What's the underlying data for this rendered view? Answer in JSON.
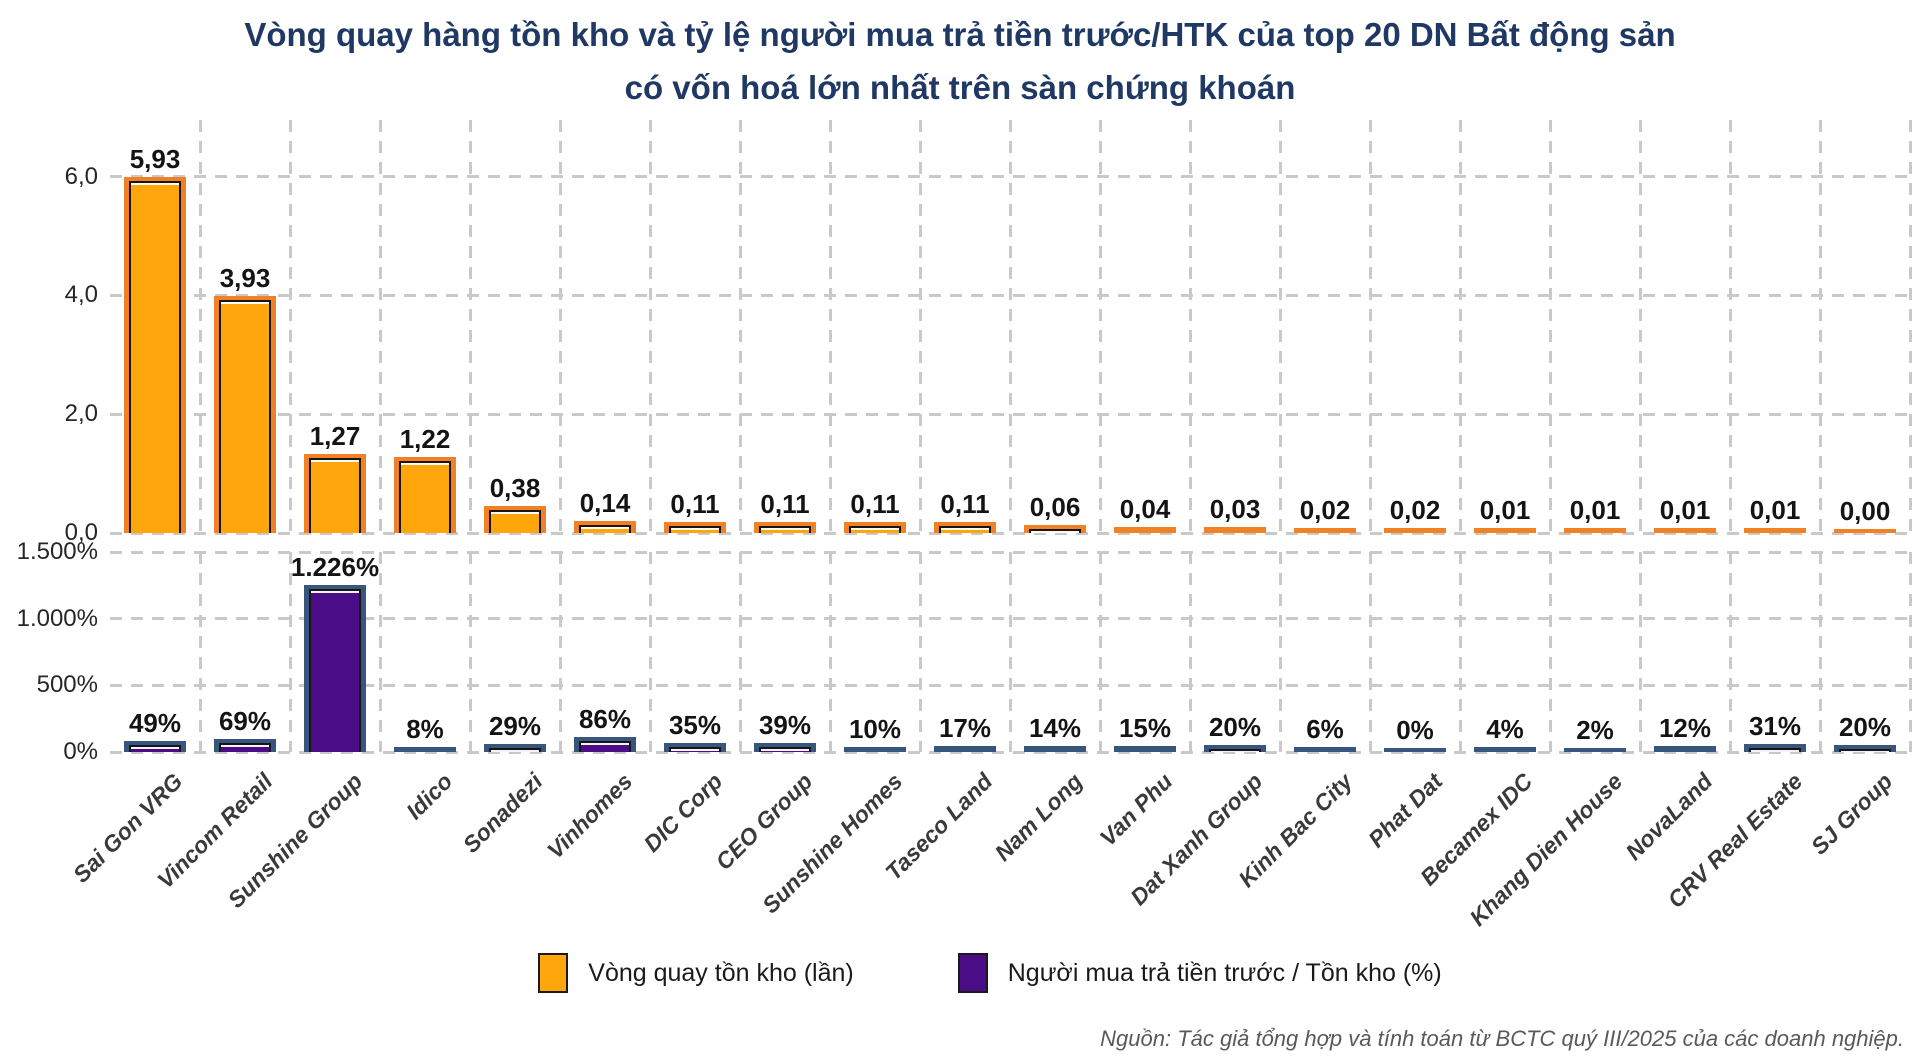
{
  "title": {
    "line1": "Vòng quay hàng tồn kho và tỷ lệ người mua trả tiền trước/HTK của top 20 DN Bất động sản",
    "line2": "có vốn hoá lớn nhất trên sàn chứng khoán"
  },
  "source_note": "Nguồn: Tác giả tổng hợp và tính toán từ BCTC quý III/2025 của các doanh nghiệp.",
  "colors": {
    "title_navy": "#1F3864",
    "orange_fill": "#FFA60D",
    "orange_frame": "#F08125",
    "purple_fill": "#4B0D87",
    "purple_frame": "#38557D",
    "gridline": "#C9C9C9"
  },
  "legend": [
    {
      "label": "Vòng quay tồn kho (lần)",
      "fill": "#FFA60D",
      "frame": "#1a1a1a"
    },
    {
      "label": "Người mua trả tiền trước / Tồn kho (%)",
      "fill": "#4B0D87",
      "frame": "#1a1a1a"
    }
  ],
  "chart_data": [
    {
      "type": "bar",
      "panel": "top",
      "series_name": "Vòng quay tồn kho (lần)",
      "categories": [
        "Sai Gon VRG",
        "Vincom Retail",
        "Sunshine Group",
        "Idico",
        "Sonadezi",
        "Vinhomes",
        "DIC Corp",
        "CEO Group",
        "Sunshine Homes",
        "Taseco Land",
        "Nam Long",
        "Van Phu",
        "Dat Xanh Group",
        "Kinh Bac City",
        "Phat Dat",
        "Becamex IDC",
        "Khang Dien House",
        "NovaLand",
        "CRV Real Estate",
        "SJ Group"
      ],
      "values": [
        5.93,
        3.93,
        1.27,
        1.22,
        0.38,
        0.14,
        0.11,
        0.11,
        0.11,
        0.11,
        0.06,
        0.04,
        0.03,
        0.02,
        0.02,
        0.01,
        0.01,
        0.01,
        0.01,
        0.0
      ],
      "value_labels": [
        "5,93",
        "3,93",
        "1,27",
        "1,22",
        "0,38",
        "0,14",
        "0,11",
        "0,11",
        "0,11",
        "0,11",
        "0,06",
        "0,04",
        "0,03",
        "0,02",
        "0,02",
        "0,01",
        "0,01",
        "0,01",
        "0,01",
        "0,00"
      ],
      "ylim": [
        0,
        6.7
      ],
      "yticks": [
        {
          "value": 6,
          "label": "6,0"
        },
        {
          "value": 4,
          "label": "4,0"
        },
        {
          "value": 2,
          "label": "2,0"
        },
        {
          "value": 0,
          "label": "0,0"
        }
      ],
      "grid": true,
      "bar_fill": "#FFA60D",
      "bar_frame": "#F08125"
    },
    {
      "type": "bar",
      "panel": "bottom",
      "series_name": "Người mua trả tiền trước / Tồn kho (%)",
      "categories": [
        "Sai Gon VRG",
        "Vincom Retail",
        "Sunshine Group",
        "Idico",
        "Sonadezi",
        "Vinhomes",
        "DIC Corp",
        "CEO Group",
        "Sunshine Homes",
        "Taseco Land",
        "Nam Long",
        "Van Phu",
        "Dat Xanh Group",
        "Kinh Bac City",
        "Phat Dat",
        "Becamex IDC",
        "Khang Dien House",
        "NovaLand",
        "CRV Real Estate",
        "SJ Group"
      ],
      "values": [
        49,
        69,
        1226,
        8,
        29,
        86,
        35,
        39,
        10,
        17,
        14,
        15,
        20,
        6,
        0,
        4,
        2,
        12,
        31,
        20
      ],
      "value_labels": [
        "49%",
        "69%",
        "1.226%",
        "8%",
        "29%",
        "86%",
        "35%",
        "39%",
        "10%",
        "17%",
        "14%",
        "15%",
        "20%",
        "6%",
        "0%",
        "4%",
        "2%",
        "12%",
        "31%",
        "20%"
      ],
      "ylim": [
        0,
        1500
      ],
      "yticks": [
        {
          "value": 1500,
          "label": "1.500%"
        },
        {
          "value": 1000,
          "label": "1.000%"
        },
        {
          "value": 500,
          "label": "500%"
        },
        {
          "value": 0,
          "label": "0%"
        }
      ],
      "grid": true,
      "bar_fill": "#4B0D87",
      "bar_frame": "#38557D"
    }
  ]
}
